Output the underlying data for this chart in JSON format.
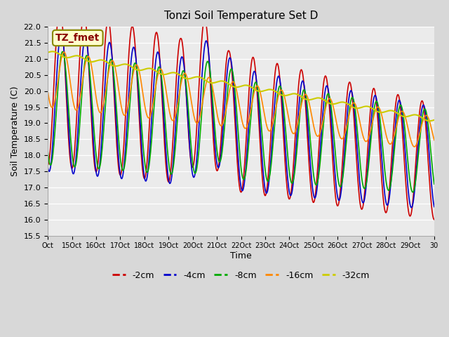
{
  "title": "Tonzi Soil Temperature Set D",
  "xlabel": "Time",
  "ylabel": "Soil Temperature (C)",
  "ylim": [
    15.5,
    22.0
  ],
  "yticks": [
    15.5,
    16.0,
    16.5,
    17.0,
    17.5,
    18.0,
    18.5,
    19.0,
    19.5,
    20.0,
    20.5,
    21.0,
    21.5,
    22.0
  ],
  "xtick_labels": [
    "Oct",
    "15Oct",
    "16Oct",
    "17Oct",
    "18Oct",
    "19Oct",
    "20Oct",
    "21Oct",
    "22Oct",
    "23Oct",
    "24Oct",
    "25Oct",
    "26Oct",
    "27Oct",
    "28Oct",
    "29Oct",
    "30"
  ],
  "series_labels": [
    "-2cm",
    "-4cm",
    "-8cm",
    "-16cm",
    "-32cm"
  ],
  "series_colors": [
    "#cc0000",
    "#0000cc",
    "#00aa00",
    "#ff8800",
    "#cccc00"
  ],
  "line_widths": [
    1.2,
    1.2,
    1.2,
    1.2,
    1.5
  ],
  "annotation_text": "TZ_fmet",
  "annotation_color": "#880000",
  "annotation_bg": "#ffffcc"
}
